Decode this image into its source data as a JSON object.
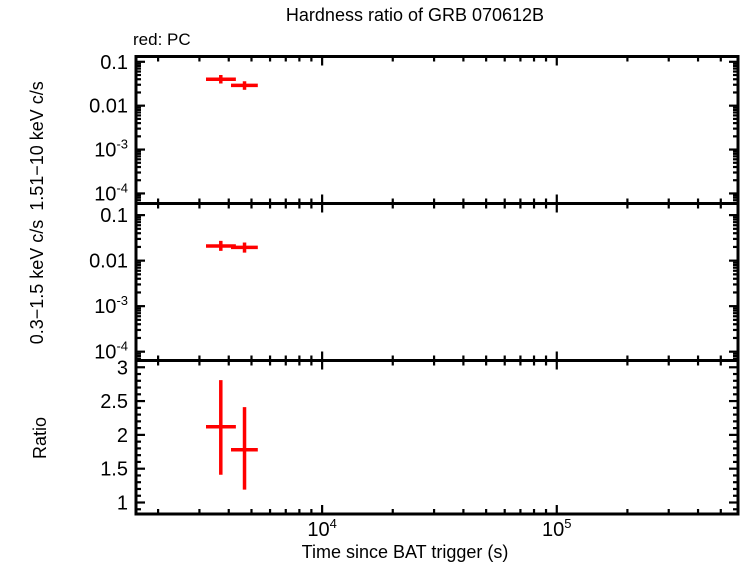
{
  "title": "Hardness ratio of GRB 070612B",
  "legend": "red: PC",
  "xlabel": "Time since BAT trigger (s)",
  "colors": {
    "data_series": "#ff0000",
    "axis": "#000000",
    "background": "#ffffff"
  },
  "chart_data": {
    "type": "scatter",
    "description": "Three vertically stacked panels sharing a log time axis; red crosses are PC-mode data with x/y error bars",
    "x_scale": "log",
    "xlim": [
      1610,
      592000
    ],
    "x_major_ticks": [
      {
        "value": 10000,
        "label": "10^4"
      },
      {
        "value": 100000,
        "label": "10^5"
      }
    ],
    "panels": [
      {
        "name": "hard-band-rate",
        "ylabel": "1.51−10 keV c/s",
        "y_scale": "log",
        "ylim": [
          5.9e-05,
          0.132
        ],
        "y_major_ticks": [
          {
            "value": 0.1,
            "label": "0.1"
          },
          {
            "value": 0.01,
            "label": "0.01"
          },
          {
            "value": 0.001,
            "label": "10^-3"
          },
          {
            "value": 0.0001,
            "label": "10^-4"
          }
        ],
        "series": [
          {
            "name": "PC",
            "color": "#ff0000",
            "points": [
              {
                "x": 3700,
                "x_lo": 3200,
                "x_hi": 4290,
                "y": 0.04,
                "y_lo": 0.032,
                "y_hi": 0.05
              },
              {
                "x": 4670,
                "x_lo": 4090,
                "x_hi": 5320,
                "y": 0.029,
                "y_lo": 0.023,
                "y_hi": 0.036
              }
            ]
          }
        ]
      },
      {
        "name": "soft-band-rate",
        "ylabel": "0.3−1.5 keV c/s",
        "y_scale": "log",
        "ylim": [
          6.4e-05,
          0.18
        ],
        "y_major_ticks": [
          {
            "value": 0.1,
            "label": "0.1"
          },
          {
            "value": 0.01,
            "label": "0.01"
          },
          {
            "value": 0.001,
            "label": "10^-3"
          },
          {
            "value": 0.0001,
            "label": "10^-4"
          }
        ],
        "series": [
          {
            "name": "PC",
            "color": "#ff0000",
            "points": [
              {
                "x": 3700,
                "x_lo": 3200,
                "x_hi": 4290,
                "y": 0.021,
                "y_lo": 0.0164,
                "y_hi": 0.0272
              },
              {
                "x": 4670,
                "x_lo": 4090,
                "x_hi": 5320,
                "y": 0.0195,
                "y_lo": 0.015,
                "y_hi": 0.025
              }
            ]
          }
        ]
      },
      {
        "name": "hardness-ratio",
        "ylabel": "Ratio",
        "y_scale": "linear",
        "ylim": [
          0.83,
          3.1
        ],
        "y_minor_step": 0.1,
        "y_major_ticks": [
          {
            "value": 3,
            "label": "3"
          },
          {
            "value": 2.5,
            "label": "2.5"
          },
          {
            "value": 2,
            "label": "2"
          },
          {
            "value": 1.5,
            "label": "1.5"
          },
          {
            "value": 1,
            "label": "1"
          }
        ],
        "series": [
          {
            "name": "PC",
            "color": "#ff0000",
            "points": [
              {
                "x": 3700,
                "x_lo": 3200,
                "x_hi": 4290,
                "y": 2.12,
                "y_lo": 1.41,
                "y_hi": 2.81
              },
              {
                "x": 4670,
                "x_lo": 4090,
                "x_hi": 5320,
                "y": 1.78,
                "y_lo": 1.19,
                "y_hi": 2.41
              }
            ]
          }
        ]
      }
    ]
  }
}
